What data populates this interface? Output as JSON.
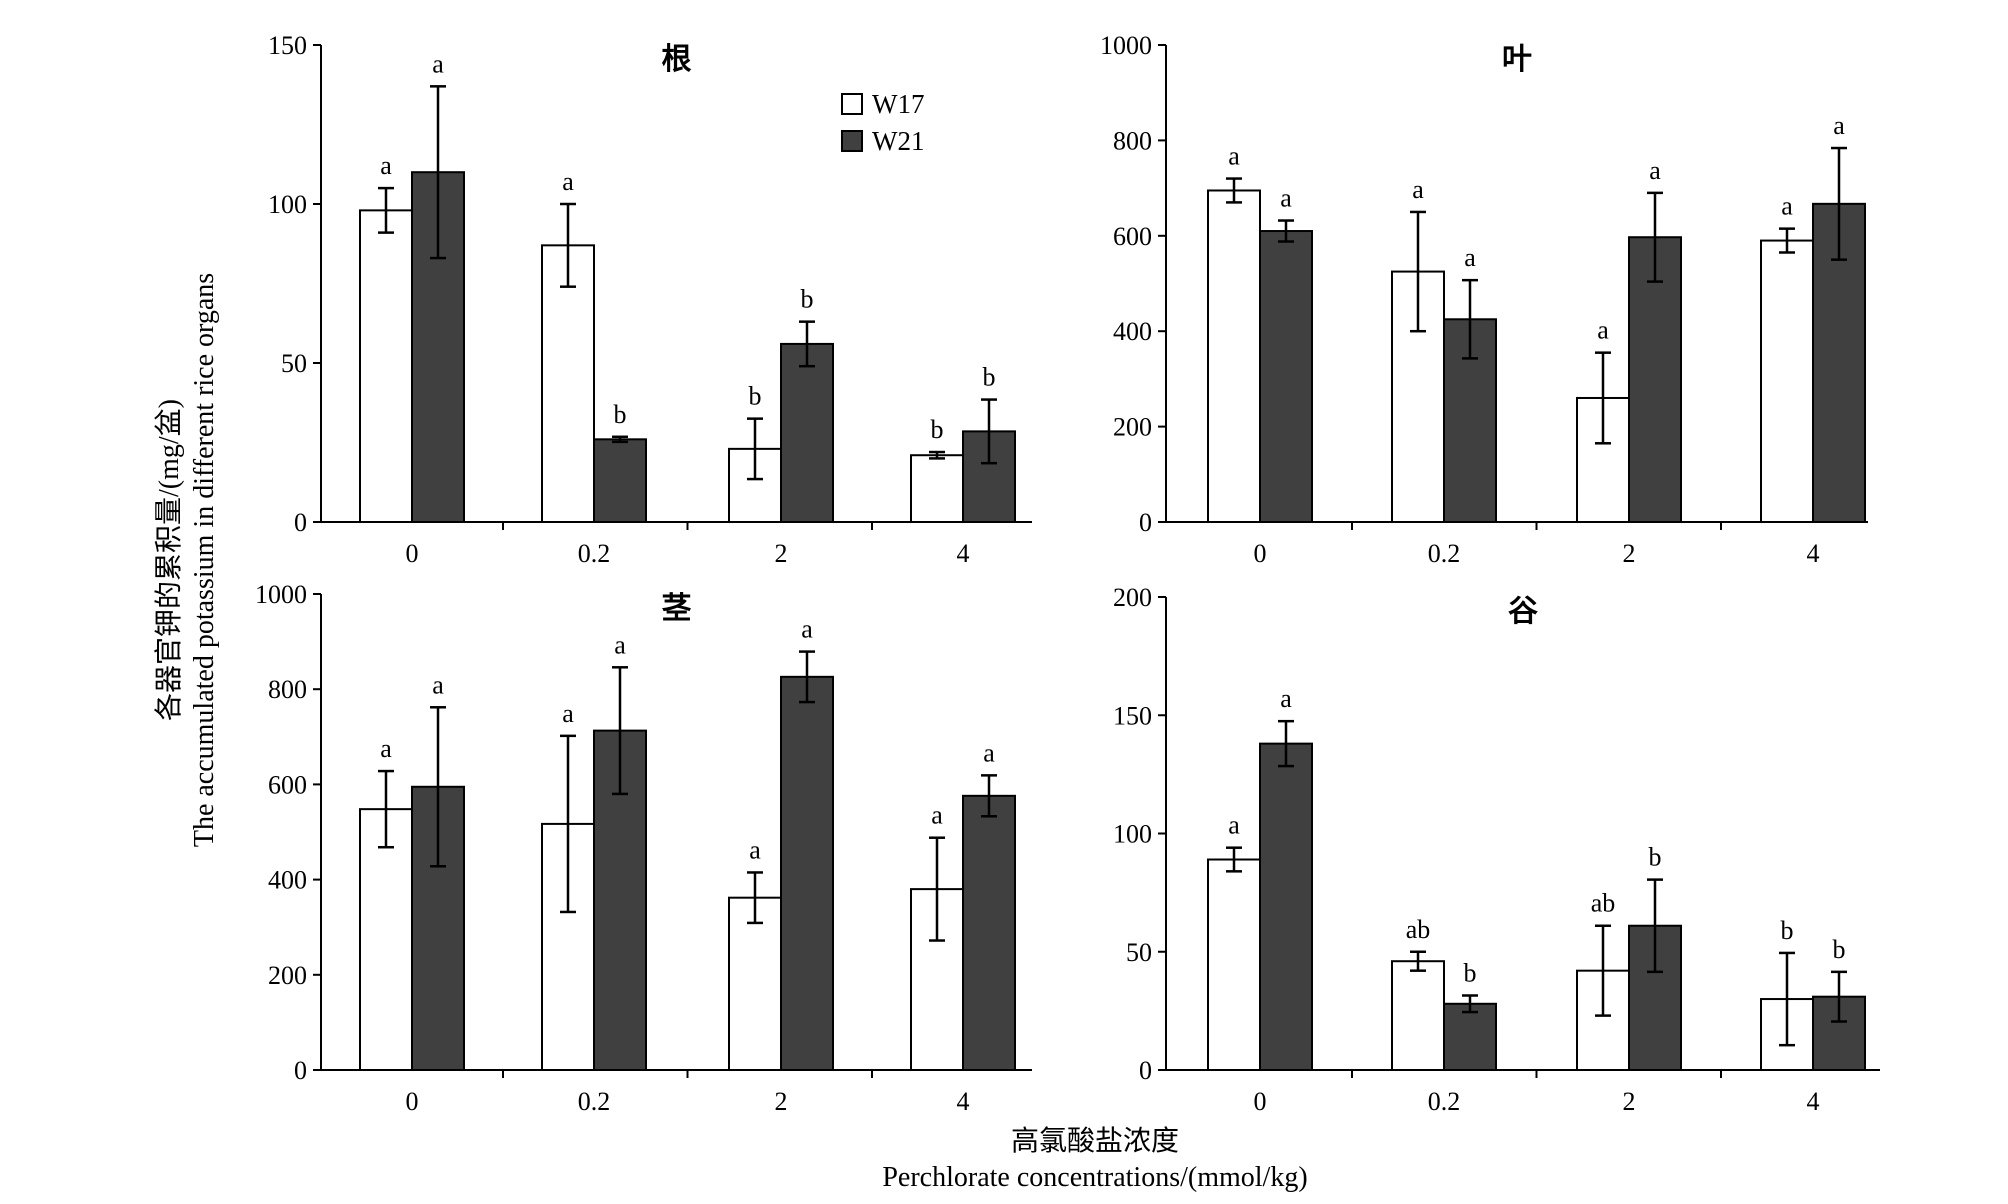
{
  "figure": {
    "ylabel_cn": "各器官钾的累积量/(mg/盆)",
    "ylabel_en": "The accumulated potassium in different rice organs",
    "xlabel_cn": "高氯酸盐浓度",
    "xlabel_en": "Perchlorate concentrations/(mmol/kg)"
  },
  "legend": {
    "placement": "top-right of first panel",
    "items": [
      {
        "name": "W17",
        "color": "#ffffff"
      },
      {
        "name": "W21",
        "color": "#404040"
      }
    ]
  },
  "chart_data": [
    {
      "type": "bar",
      "title": "根",
      "categories": [
        "0",
        "0.2",
        "2",
        "4"
      ],
      "ylim": [
        0,
        150
      ],
      "yticks": [
        0,
        50,
        100,
        150
      ],
      "grid": false,
      "series": [
        {
          "values": [
            98,
            87,
            23,
            21
          ],
          "errors": [
            7,
            13,
            9.5,
            1
          ],
          "sig": [
            "a",
            "a",
            "b",
            "b"
          ]
        },
        {
          "values": [
            110,
            26,
            56,
            28.5
          ],
          "errors": [
            27,
            0.8,
            7,
            10
          ],
          "sig": [
            "a",
            "b",
            "b",
            "b"
          ]
        }
      ]
    },
    {
      "type": "bar",
      "title": "叶",
      "categories": [
        "0",
        "0.2",
        "2",
        "4"
      ],
      "ylim": [
        0,
        1000
      ],
      "yticks": [
        0,
        200,
        400,
        600,
        800,
        1000
      ],
      "grid": false,
      "series": [
        {
          "values": [
            695,
            525,
            260,
            590
          ],
          "errors": [
            25,
            125,
            95,
            25
          ],
          "sig": [
            "a",
            "a",
            "a",
            "a"
          ]
        },
        {
          "values": [
            610,
            425,
            597,
            667
          ],
          "errors": [
            22,
            82,
            93,
            117
          ],
          "sig": [
            "a",
            "a",
            "a",
            "a"
          ]
        }
      ]
    },
    {
      "type": "bar",
      "title": "茎",
      "categories": [
        "0",
        "0.2",
        "2",
        "4"
      ],
      "ylim": [
        0,
        1000
      ],
      "yticks": [
        0,
        200,
        400,
        600,
        800,
        1000
      ],
      "grid": false,
      "series": [
        {
          "values": [
            548,
            517,
            362,
            380
          ],
          "errors": [
            80,
            185,
            53,
            108
          ],
          "sig": [
            "a",
            "a",
            "a",
            "a"
          ]
        },
        {
          "values": [
            595,
            713,
            826,
            576
          ],
          "errors": [
            167,
            133,
            53,
            43
          ],
          "sig": [
            "a",
            "a",
            "a",
            "a"
          ]
        }
      ]
    },
    {
      "type": "bar",
      "title": "谷",
      "categories": [
        "0",
        "0.2",
        "2",
        "4"
      ],
      "ylim": [
        0,
        200
      ],
      "yticks": [
        0,
        50,
        100,
        150,
        200
      ],
      "grid": false,
      "series": [
        {
          "values": [
            89,
            46,
            42,
            30
          ],
          "errors": [
            5,
            4,
            19,
            19.5
          ],
          "sig": [
            "a",
            "ab",
            "ab",
            "b"
          ]
        },
        {
          "values": [
            138,
            28,
            61,
            31
          ],
          "errors": [
            9.5,
            3.5,
            19.5,
            10.5
          ],
          "sig": [
            "a",
            "b",
            "b",
            "b"
          ]
        }
      ]
    }
  ]
}
